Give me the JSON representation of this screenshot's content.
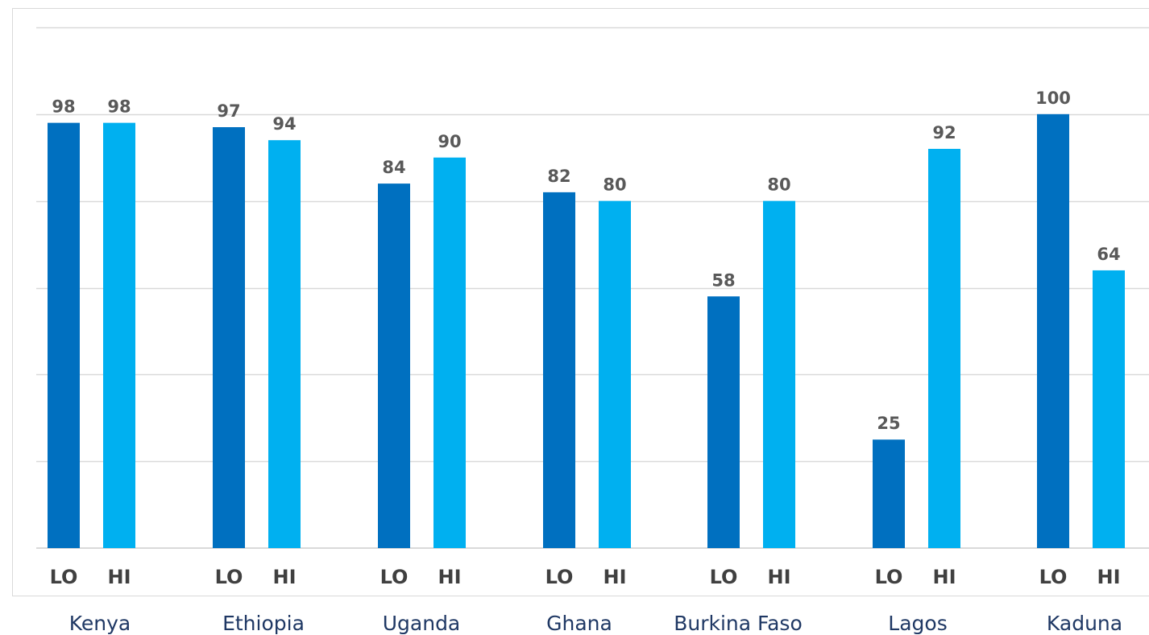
{
  "chart_data": {
    "type": "bar",
    "categories": [
      "Kenya",
      "Ethiopia",
      "Uganda",
      "Ghana",
      "Burkina Faso",
      "Lagos",
      "Kaduna"
    ],
    "series": [
      {
        "name": "LO",
        "color": "#0070c0",
        "values": [
          98,
          97,
          84,
          82,
          58,
          25,
          100
        ]
      },
      {
        "name": "HI",
        "color": "#00b0f0",
        "values": [
          98,
          94,
          90,
          80,
          80,
          92,
          64
        ]
      }
    ],
    "bar_sub_labels": [
      "LO",
      "HI"
    ],
    "title": "",
    "xlabel": "",
    "ylabel": "",
    "ylim": [
      0,
      120
    ],
    "grid": true,
    "gridline_step": 20,
    "legend": "none",
    "data_labels": true,
    "colors": {
      "gridline": "#d9d9d9",
      "frame": "#d9d9d9",
      "data_label": "#595959",
      "sub_label": "#404040",
      "category_label": "#1f3864"
    }
  }
}
